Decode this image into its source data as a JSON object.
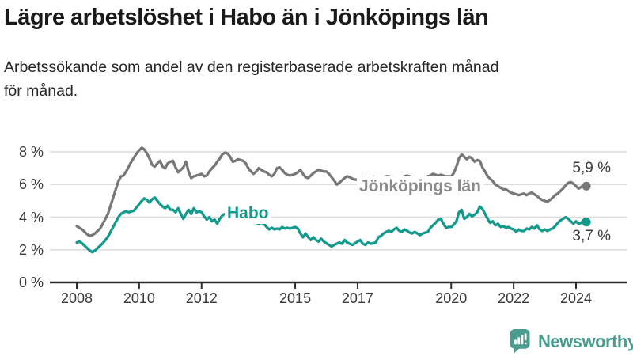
{
  "header": {
    "title": "Lägre arbetslöshet i Habo än i Jönköpings län",
    "subtitle": "Arbetssökande som andel av den registerbaserade arbetskraften månad\nför månad."
  },
  "chart_data": {
    "type": "line",
    "unit": "%",
    "x_start_year": 2008,
    "points_per_year": 12,
    "ylim": [
      0,
      8.6
    ],
    "grid": true,
    "y_ticks": [
      {
        "value": 0,
        "label": "0 %"
      },
      {
        "value": 2,
        "label": "2 %"
      },
      {
        "value": 4,
        "label": "4 %"
      },
      {
        "value": 6,
        "label": "6 %"
      },
      {
        "value": 8,
        "label": "8 %"
      }
    ],
    "x_ticks": [
      {
        "value": 2008,
        "label": "2008"
      },
      {
        "value": 2010,
        "label": "2010"
      },
      {
        "value": 2012,
        "label": "2012"
      },
      {
        "value": 2015,
        "label": "2015"
      },
      {
        "value": 2017,
        "label": "2017"
      },
      {
        "value": 2020,
        "label": "2020"
      },
      {
        "value": 2022,
        "label": "2022"
      },
      {
        "value": 2024,
        "label": "2024"
      }
    ],
    "series": [
      {
        "name": "Jönköpings län",
        "color": "#787878",
        "label_color": "#8a8a8a",
        "end_label": "5,9 %",
        "values": [
          3.45,
          3.35,
          3.25,
          3.1,
          2.95,
          2.85,
          2.9,
          3.0,
          3.15,
          3.3,
          3.6,
          3.9,
          4.2,
          4.7,
          5.2,
          5.7,
          6.2,
          6.5,
          6.55,
          6.8,
          7.1,
          7.4,
          7.65,
          7.9,
          8.1,
          8.25,
          8.15,
          7.9,
          7.6,
          7.2,
          7.1,
          7.3,
          7.45,
          7.1,
          7.0,
          7.3,
          7.4,
          7.45,
          7.05,
          6.75,
          6.9,
          7.05,
          7.4,
          6.8,
          6.4,
          6.5,
          6.55,
          6.6,
          6.65,
          6.5,
          6.55,
          6.8,
          7.0,
          7.15,
          7.4,
          7.6,
          7.85,
          7.95,
          7.9,
          7.7,
          7.4,
          7.45,
          7.55,
          7.5,
          7.45,
          7.3,
          7.0,
          6.8,
          6.65,
          6.8,
          7.0,
          6.9,
          6.8,
          6.75,
          6.6,
          6.5,
          6.65,
          7.0,
          7.05,
          6.9,
          6.7,
          6.6,
          6.55,
          6.6,
          6.65,
          6.75,
          6.9,
          6.65,
          6.45,
          6.4,
          6.55,
          6.7,
          6.8,
          6.9,
          6.85,
          6.8,
          6.8,
          6.65,
          6.45,
          6.25,
          6.0,
          6.1,
          6.25,
          6.4,
          6.5,
          6.45,
          6.35,
          6.3,
          6.3,
          6.4,
          6.45,
          6.4,
          6.35,
          6.4,
          6.45,
          6.4,
          6.35,
          6.4,
          6.45,
          6.5,
          6.5,
          6.45,
          6.4,
          6.35,
          6.4,
          6.45,
          6.5,
          6.55,
          6.5,
          6.45,
          6.4,
          6.35,
          6.3,
          6.35,
          6.4,
          6.5,
          6.55,
          6.65,
          6.6,
          6.55,
          6.6,
          6.55,
          6.5,
          6.5,
          6.5,
          6.7,
          7.1,
          7.6,
          7.85,
          7.7,
          7.55,
          7.7,
          7.6,
          7.4,
          7.5,
          7.45,
          7.05,
          6.8,
          6.5,
          6.35,
          6.2,
          6.0,
          5.9,
          5.8,
          5.7,
          5.7,
          5.6,
          5.5,
          5.45,
          5.4,
          5.35,
          5.4,
          5.45,
          5.35,
          5.45,
          5.5,
          5.4,
          5.3,
          5.15,
          5.05,
          5.0,
          4.95,
          5.05,
          5.2,
          5.35,
          5.45,
          5.6,
          5.75,
          5.95,
          6.1,
          6.15,
          6.05,
          5.9,
          5.75,
          5.85,
          5.95,
          5.9
        ]
      },
      {
        "name": "Habo",
        "color": "#149a8c",
        "label_color": "#149a8c",
        "end_label": "3,7 %",
        "values": [
          2.45,
          2.5,
          2.4,
          2.25,
          2.1,
          1.95,
          1.85,
          1.95,
          2.1,
          2.25,
          2.4,
          2.6,
          2.8,
          3.1,
          3.4,
          3.7,
          4.0,
          4.2,
          4.3,
          4.35,
          4.3,
          4.35,
          4.4,
          4.6,
          4.8,
          5.0,
          5.15,
          5.05,
          4.9,
          5.1,
          5.2,
          5.0,
          4.8,
          4.65,
          4.55,
          4.7,
          4.45,
          4.45,
          4.3,
          4.55,
          4.2,
          3.9,
          4.2,
          4.45,
          4.2,
          4.55,
          4.3,
          4.35,
          4.3,
          4.05,
          3.85,
          4.0,
          3.75,
          3.85,
          3.6,
          3.9,
          4.1,
          4.2,
          4.15,
          4.05,
          4.0,
          3.95,
          3.9,
          3.85,
          3.8,
          3.75,
          3.7,
          3.75,
          3.7,
          3.65,
          3.6,
          3.65,
          3.6,
          3.4,
          3.25,
          3.35,
          3.25,
          3.3,
          3.25,
          3.4,
          3.3,
          3.35,
          3.3,
          3.35,
          3.4,
          3.3,
          3.0,
          2.77,
          3.0,
          2.77,
          2.6,
          2.77,
          2.6,
          2.5,
          2.68,
          2.5,
          2.4,
          2.3,
          2.2,
          2.3,
          2.37,
          2.45,
          2.37,
          2.6,
          2.45,
          2.37,
          2.3,
          2.4,
          2.5,
          2.6,
          2.37,
          2.3,
          2.45,
          2.37,
          2.4,
          2.45,
          2.77,
          2.85,
          3.0,
          3.1,
          3.17,
          3.1,
          3.25,
          3.35,
          3.17,
          3.1,
          3.25,
          3.17,
          3.05,
          3.0,
          3.1,
          3.0,
          2.9,
          3.0,
          3.05,
          3.1,
          3.35,
          3.5,
          3.65,
          3.85,
          3.9,
          3.6,
          3.35,
          3.4,
          3.4,
          3.55,
          3.75,
          4.3,
          4.45,
          3.9,
          4.0,
          4.2,
          4.05,
          4.15,
          4.3,
          4.65,
          4.5,
          4.2,
          3.9,
          3.65,
          3.75,
          3.5,
          3.6,
          3.4,
          3.45,
          3.35,
          3.4,
          3.3,
          3.25,
          3.1,
          3.25,
          3.15,
          3.15,
          3.3,
          3.25,
          3.4,
          3.3,
          3.5,
          3.25,
          3.15,
          3.25,
          3.15,
          3.25,
          3.3,
          3.45,
          3.65,
          3.8,
          3.9,
          4.0,
          3.9,
          3.75,
          3.6,
          3.75,
          3.6,
          3.65,
          3.85,
          3.7
        ]
      }
    ]
  },
  "footer": {
    "brand": "Newsworthy",
    "brand_color": "#4a9c8e"
  }
}
